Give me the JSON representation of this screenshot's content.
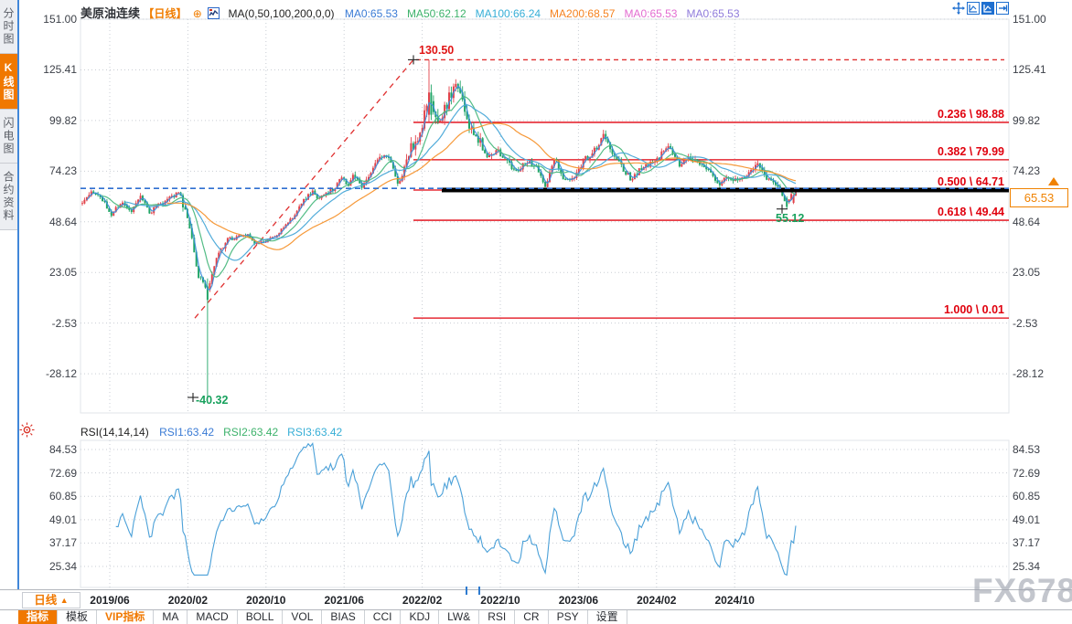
{
  "window": {
    "watermark": "FX678"
  },
  "sidebar": {
    "items": [
      {
        "label": "分时图",
        "active": false
      },
      {
        "label": "K线图",
        "active": true
      },
      {
        "label": "闪电图",
        "active": false
      },
      {
        "label": "合约资料",
        "active": false
      }
    ]
  },
  "main_header": {
    "symbol": "美原油连续",
    "period": "【日线】",
    "plus_icon": "⊕",
    "ma_formula": "MA(0,50,100,200,0,0)",
    "ma_values": [
      {
        "label": "MA0:65.53",
        "color": "#3a7bd5"
      },
      {
        "label": "MA50:62.12",
        "color": "#3db26b"
      },
      {
        "label": "MA100:66.24",
        "color": "#36aed6"
      },
      {
        "label": "MA200:68.57",
        "color": "#f5821f"
      },
      {
        "label": "MA0:65.53",
        "color": "#e36cd0"
      },
      {
        "label": "MA0:65.53",
        "color": "#8f7bdb"
      }
    ]
  },
  "rsi_header": {
    "title": "RSI(14,14,14)",
    "values": [
      {
        "label": "RSI1:63.42",
        "color": "#3a7bd5"
      },
      {
        "label": "RSI2:63.42",
        "color": "#3db26b"
      },
      {
        "label": "RSI3:63.42",
        "color": "#36aed6"
      }
    ]
  },
  "price_tag": {
    "value": "65.53"
  },
  "bottom": {
    "period_label": "日线",
    "period_arrow": "▲",
    "tabs": [
      {
        "label": "指标",
        "style": "active"
      },
      {
        "label": "模板",
        "style": ""
      },
      {
        "label": "VIP指标",
        "style": "vip"
      },
      {
        "label": "MA",
        "style": ""
      },
      {
        "label": "MACD",
        "style": ""
      },
      {
        "label": "BOLL",
        "style": ""
      },
      {
        "label": "VOL",
        "style": ""
      },
      {
        "label": "BIAS",
        "style": ""
      },
      {
        "label": "CCI",
        "style": ""
      },
      {
        "label": "KDJ",
        "style": ""
      },
      {
        "label": "LW&",
        "style": ""
      },
      {
        "label": "RSI",
        "style": ""
      },
      {
        "label": "CR",
        "style": ""
      },
      {
        "label": "PSY",
        "style": ""
      },
      {
        "label": "设置",
        "style": ""
      }
    ]
  },
  "chart_data": {
    "type": "candlestick+rsi",
    "instrument": "美原油连续",
    "period": "日线",
    "price_axis_labels": [
      "151.00",
      "125.41",
      "99.82",
      "74.23",
      "48.64",
      "23.05",
      "-2.53",
      "-28.12"
    ],
    "price_axis_values": [
      151.0,
      125.41,
      99.82,
      74.23,
      48.64,
      23.05,
      -2.53,
      -28.12
    ],
    "rsi_axis_labels": [
      "84.53",
      "72.69",
      "60.85",
      "49.01",
      "37.17",
      "25.34"
    ],
    "rsi_axis_values": [
      84.53,
      72.69,
      60.85,
      49.01,
      37.17,
      25.34
    ],
    "x_axis_labels": [
      "2019/06",
      "2020/02",
      "2020/10",
      "2021/06",
      "2022/02",
      "2022/10",
      "2023/06",
      "2024/02",
      "2024/10"
    ],
    "fib_levels": [
      {
        "text": "0.236 \\ 98.88",
        "price": 98.88
      },
      {
        "text": "0.382 \\ 79.99",
        "price": 79.99
      },
      {
        "text": "0.500 \\ 64.71",
        "price": 64.71
      },
      {
        "text": "0.618 \\ 49.44",
        "price": 49.44
      },
      {
        "text": "1.000 \\ 0.01",
        "price": 0.01
      }
    ],
    "annotations": {
      "peak": {
        "label": "130.50",
        "price": 130.5
      },
      "trough": {
        "label": "-40.32",
        "price": -40.32
      },
      "recent_low": {
        "label": "55.12",
        "price": 55.12
      },
      "last_price": 65.53
    },
    "price_path": [
      [
        0,
        58
      ],
      [
        0.014,
        64
      ],
      [
        0.027,
        61
      ],
      [
        0.041,
        52.5
      ],
      [
        0.054,
        58.5
      ],
      [
        0.068,
        54
      ],
      [
        0.081,
        61.5
      ],
      [
        0.095,
        53.5
      ],
      [
        0.108,
        57.5
      ],
      [
        0.122,
        60.5
      ],
      [
        0.135,
        64
      ],
      [
        0.149,
        50
      ],
      [
        0.162,
        22
      ],
      [
        0.176,
        14
      ],
      [
        0.189,
        32
      ],
      [
        0.203,
        39
      ],
      [
        0.23,
        42.5
      ],
      [
        0.243,
        37.5
      ],
      [
        0.27,
        41
      ],
      [
        0.297,
        52
      ],
      [
        0.311,
        60
      ],
      [
        0.324,
        64.5
      ],
      [
        0.33,
        59
      ],
      [
        0.338,
        62
      ],
      [
        0.351,
        65
      ],
      [
        0.365,
        72
      ],
      [
        0.372,
        66
      ],
      [
        0.378,
        73
      ],
      [
        0.392,
        67
      ],
      [
        0.405,
        74
      ],
      [
        0.419,
        82
      ],
      [
        0.432,
        80
      ],
      [
        0.443,
        66.5
      ],
      [
        0.45,
        74
      ],
      [
        0.459,
        85
      ],
      [
        0.473,
        93
      ],
      [
        0.486,
        112
      ],
      [
        0.5,
        99
      ],
      [
        0.514,
        111
      ],
      [
        0.527,
        119
      ],
      [
        0.541,
        97
      ],
      [
        0.554,
        92
      ],
      [
        0.568,
        80
      ],
      [
        0.581,
        86
      ],
      [
        0.595,
        79
      ],
      [
        0.608,
        74.5
      ],
      [
        0.622,
        79
      ],
      [
        0.635,
        76.5
      ],
      [
        0.649,
        66.5
      ],
      [
        0.662,
        81
      ],
      [
        0.676,
        69
      ],
      [
        0.689,
        70
      ],
      [
        0.703,
        80
      ],
      [
        0.716,
        83.5
      ],
      [
        0.73,
        92
      ],
      [
        0.743,
        84
      ],
      [
        0.757,
        76
      ],
      [
        0.77,
        70
      ],
      [
        0.784,
        76
      ],
      [
        0.797,
        78.5
      ],
      [
        0.811,
        82.5
      ],
      [
        0.824,
        86.5
      ],
      [
        0.838,
        77.5
      ],
      [
        0.851,
        81
      ],
      [
        0.865,
        78
      ],
      [
        0.878,
        74
      ],
      [
        0.892,
        67
      ],
      [
        0.905,
        71.5
      ],
      [
        0.919,
        69
      ],
      [
        0.932,
        71.5
      ],
      [
        0.946,
        78
      ],
      [
        0.959,
        71
      ],
      [
        0.973,
        67.5
      ],
      [
        0.986,
        58
      ],
      [
        1,
        65.53
      ]
    ],
    "colors": {
      "up_candle": "#e2434b",
      "down_candle": "#21a567",
      "ma_fast": "#3c8fdd",
      "ma50": "#4ab87e",
      "ma100": "#49a8d8",
      "ma200": "#f5942e",
      "rsi_line": "#4aa0d8",
      "fib_line": "#e0000d",
      "trend_dash": "#e03030",
      "price_dash": "#2f6fd0",
      "support_bar": "#000000",
      "grid": "#c9cdd4"
    }
  }
}
